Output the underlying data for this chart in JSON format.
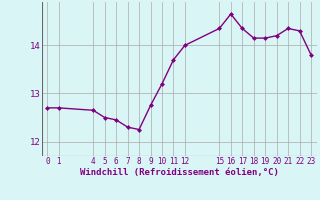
{
  "x": [
    0,
    1,
    4,
    5,
    6,
    7,
    8,
    9,
    10,
    11,
    12,
    15,
    16,
    17,
    18,
    19,
    20,
    21,
    22,
    23
  ],
  "y": [
    12.7,
    12.7,
    12.65,
    12.5,
    12.45,
    12.3,
    12.25,
    12.75,
    13.2,
    13.7,
    14.0,
    14.35,
    14.65,
    14.35,
    14.15,
    14.15,
    14.2,
    14.35,
    14.3,
    13.8
  ],
  "xticks": [
    0,
    1,
    4,
    5,
    6,
    7,
    8,
    9,
    10,
    11,
    12,
    15,
    16,
    17,
    18,
    19,
    20,
    21,
    22,
    23
  ],
  "yticks": [
    12,
    13,
    14
  ],
  "ylim": [
    11.7,
    14.9
  ],
  "xlim": [
    -0.5,
    23.5
  ],
  "xlabel": "Windchill (Refroidissement éolien,°C)",
  "line_color": "#800080",
  "marker": "D",
  "marker_size": 2,
  "bg_color": "#d9f5f5",
  "grid_color": "#aaaaaa",
  "tick_color": "#800080",
  "label_color": "#800080",
  "linewidth": 1.0
}
